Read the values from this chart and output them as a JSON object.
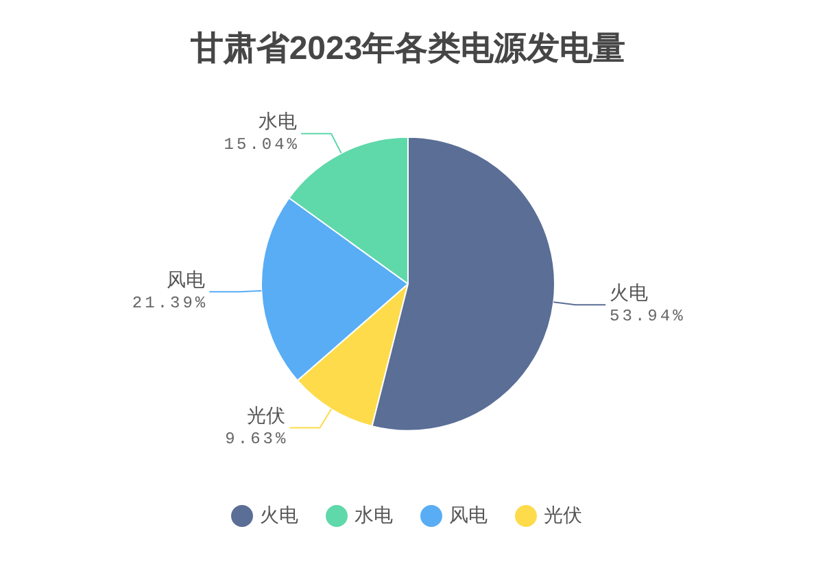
{
  "chart_data": {
    "type": "pie",
    "title": "甘肃省2023年各类电源发电量",
    "categories": [
      "火电",
      "水电",
      "风电",
      "光伏"
    ],
    "values": [
      53.94,
      15.04,
      21.39,
      9.63
    ],
    "colors": [
      "#5a6e96",
      "#5fd8aa",
      "#58adf5",
      "#fedb4b"
    ],
    "value_labels": [
      "53.94%",
      "15.04%",
      "21.39%",
      "9.63%"
    ],
    "legend": "bottom"
  }
}
